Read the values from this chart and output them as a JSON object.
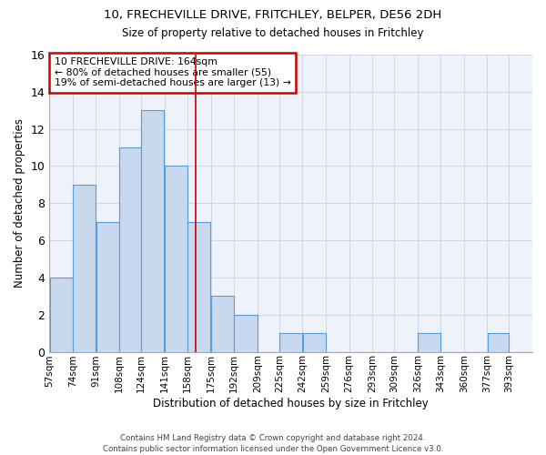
{
  "title1": "10, FRECHEVILLE DRIVE, FRITCHLEY, BELPER, DE56 2DH",
  "title2": "Size of property relative to detached houses in Fritchley",
  "xlabel": "Distribution of detached houses by size in Fritchley",
  "ylabel": "Number of detached properties",
  "footnote": "Contains HM Land Registry data © Crown copyright and database right 2024.\nContains public sector information licensed under the Open Government Licence v3.0.",
  "bin_labels": [
    "57sqm",
    "74sqm",
    "91sqm",
    "108sqm",
    "124sqm",
    "141sqm",
    "158sqm",
    "175sqm",
    "192sqm",
    "209sqm",
    "225sqm",
    "242sqm",
    "259sqm",
    "276sqm",
    "293sqm",
    "309sqm",
    "326sqm",
    "343sqm",
    "360sqm",
    "377sqm",
    "393sqm"
  ],
  "bar_values": [
    4,
    9,
    7,
    11,
    13,
    10,
    7,
    3,
    2,
    0,
    1,
    1,
    0,
    0,
    0,
    0,
    1,
    0,
    0,
    1,
    0
  ],
  "bar_color": "#c8d9ef",
  "bar_edge_color": "#5b9bd5",
  "grid_color": "#d0d8e8",
  "annotation_text": "10 FRECHEVILLE DRIVE: 164sqm\n← 80% of detached houses are smaller (55)\n19% of semi-detached houses are larger (13) →",
  "vline_x": 164,
  "bin_edges": [
    57,
    74,
    91,
    108,
    124,
    141,
    158,
    175,
    192,
    209,
    225,
    242,
    259,
    276,
    293,
    309,
    326,
    343,
    360,
    377,
    393,
    410
  ],
  "ylim": [
    0,
    16
  ],
  "yticks": [
    0,
    2,
    4,
    6,
    8,
    10,
    12,
    14,
    16
  ],
  "background_color": "#eef2f9",
  "vline_color": "#cc0000"
}
